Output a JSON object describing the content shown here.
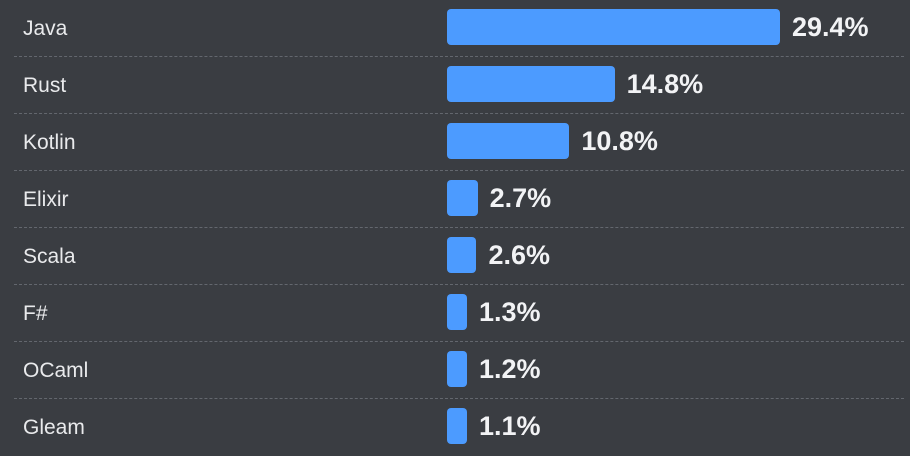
{
  "chart_data": {
    "type": "bar",
    "orientation": "horizontal",
    "categories": [
      "Java",
      "Rust",
      "Kotlin",
      "Elixir",
      "Scala",
      "F#",
      "OCaml",
      "Gleam"
    ],
    "values": [
      29.4,
      14.8,
      10.8,
      2.7,
      2.6,
      1.3,
      1.2,
      1.1
    ],
    "value_labels": [
      "29.4%",
      "14.8%",
      "10.8%",
      "2.7%",
      "2.6%",
      "1.3%",
      "1.2%",
      "1.1%"
    ],
    "title": "",
    "xlabel": "",
    "ylabel": "",
    "grid": false,
    "legend": "none",
    "colors": {
      "bar": "#4c9bff",
      "background": "#3a3d42",
      "label": "#e9eaec",
      "value": "#f2f3f5",
      "divider": "#63676e"
    }
  }
}
